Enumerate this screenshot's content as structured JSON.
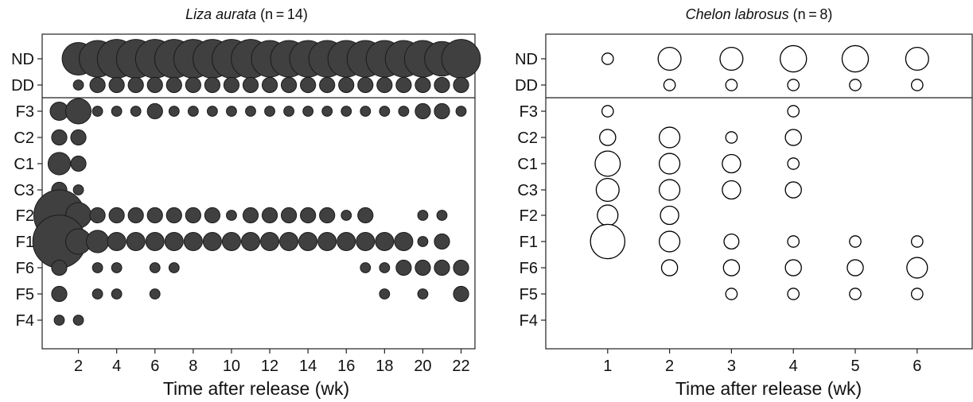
{
  "chart_data": [
    {
      "type": "scatter",
      "title_species": "Liza aurata",
      "title_rest": " (n = 14)",
      "xlabel": "Time after release (wk)",
      "ylabel": "",
      "categories_y": [
        "ND",
        "DD",
        "F3",
        "C2",
        "C1",
        "C3",
        "F2",
        "F1",
        "F6",
        "F5",
        "F4"
      ],
      "x_ticks": [
        "2",
        "4",
        "6",
        "8",
        "10",
        "12",
        "14",
        "16",
        "18",
        "20",
        "22"
      ],
      "xlim": [
        0.3,
        23.0
      ],
      "marker": "filled-circle",
      "marker_color": "#404040",
      "size_scale": "circle size proportional to number of fish",
      "points": [
        {
          "y": "ND",
          "x": 2,
          "s": 3.2
        },
        {
          "y": "ND",
          "x": 3,
          "s": 3.6
        },
        {
          "y": "ND",
          "x": 4,
          "s": 3.8
        },
        {
          "y": "ND",
          "x": 5,
          "s": 3.8
        },
        {
          "y": "ND",
          "x": 6,
          "s": 3.8
        },
        {
          "y": "ND",
          "x": 7,
          "s": 3.8
        },
        {
          "y": "ND",
          "x": 8,
          "s": 3.8
        },
        {
          "y": "ND",
          "x": 9,
          "s": 3.8
        },
        {
          "y": "ND",
          "x": 10,
          "s": 3.8
        },
        {
          "y": "ND",
          "x": 11,
          "s": 3.8
        },
        {
          "y": "ND",
          "x": 12,
          "s": 3.6
        },
        {
          "y": "ND",
          "x": 13,
          "s": 3.6
        },
        {
          "y": "ND",
          "x": 14,
          "s": 3.6
        },
        {
          "y": "ND",
          "x": 15,
          "s": 3.6
        },
        {
          "y": "ND",
          "x": 16,
          "s": 3.6
        },
        {
          "y": "ND",
          "x": 17,
          "s": 3.6
        },
        {
          "y": "ND",
          "x": 18,
          "s": 3.6
        },
        {
          "y": "ND",
          "x": 19,
          "s": 3.6
        },
        {
          "y": "ND",
          "x": 20,
          "s": 3.6
        },
        {
          "y": "ND",
          "x": 21,
          "s": 3.4
        },
        {
          "y": "ND",
          "x": 22,
          "s": 3.8
        },
        {
          "y": "DD",
          "x": 2,
          "s": 1
        },
        {
          "y": "DD",
          "x": 3,
          "s": 1.5
        },
        {
          "y": "DD",
          "x": 4,
          "s": 1.5
        },
        {
          "y": "DD",
          "x": 5,
          "s": 1.5
        },
        {
          "y": "DD",
          "x": 6,
          "s": 1.5
        },
        {
          "y": "DD",
          "x": 7,
          "s": 1.5
        },
        {
          "y": "DD",
          "x": 8,
          "s": 1.5
        },
        {
          "y": "DD",
          "x": 9,
          "s": 1.5
        },
        {
          "y": "DD",
          "x": 10,
          "s": 1.5
        },
        {
          "y": "DD",
          "x": 11,
          "s": 1.5
        },
        {
          "y": "DD",
          "x": 12,
          "s": 1.5
        },
        {
          "y": "DD",
          "x": 13,
          "s": 1.5
        },
        {
          "y": "DD",
          "x": 14,
          "s": 1.5
        },
        {
          "y": "DD",
          "x": 15,
          "s": 1.5
        },
        {
          "y": "DD",
          "x": 16,
          "s": 1.5
        },
        {
          "y": "DD",
          "x": 17,
          "s": 1.5
        },
        {
          "y": "DD",
          "x": 18,
          "s": 1.5
        },
        {
          "y": "DD",
          "x": 19,
          "s": 1.5
        },
        {
          "y": "DD",
          "x": 20,
          "s": 1.5
        },
        {
          "y": "DD",
          "x": 21,
          "s": 1.5
        },
        {
          "y": "DD",
          "x": 22,
          "s": 1.5
        },
        {
          "y": "F3",
          "x": 1,
          "s": 1.8
        },
        {
          "y": "F3",
          "x": 2,
          "s": 2.5
        },
        {
          "y": "F3",
          "x": 3,
          "s": 1
        },
        {
          "y": "F3",
          "x": 4,
          "s": 1
        },
        {
          "y": "F3",
          "x": 5,
          "s": 1
        },
        {
          "y": "F3",
          "x": 6,
          "s": 1.5
        },
        {
          "y": "F3",
          "x": 7,
          "s": 1
        },
        {
          "y": "F3",
          "x": 8,
          "s": 1
        },
        {
          "y": "F3",
          "x": 9,
          "s": 1
        },
        {
          "y": "F3",
          "x": 10,
          "s": 1
        },
        {
          "y": "F3",
          "x": 11,
          "s": 1
        },
        {
          "y": "F3",
          "x": 12,
          "s": 1
        },
        {
          "y": "F3",
          "x": 13,
          "s": 1
        },
        {
          "y": "F3",
          "x": 14,
          "s": 1
        },
        {
          "y": "F3",
          "x": 15,
          "s": 1
        },
        {
          "y": "F3",
          "x": 16,
          "s": 1
        },
        {
          "y": "F3",
          "x": 17,
          "s": 1
        },
        {
          "y": "F3",
          "x": 18,
          "s": 1
        },
        {
          "y": "F3",
          "x": 19,
          "s": 1
        },
        {
          "y": "F3",
          "x": 20,
          "s": 1.5
        },
        {
          "y": "F3",
          "x": 21,
          "s": 1.5
        },
        {
          "y": "F3",
          "x": 22,
          "s": 1
        },
        {
          "y": "C2",
          "x": 1,
          "s": 1.5
        },
        {
          "y": "C2",
          "x": 2,
          "s": 1.5
        },
        {
          "y": "C1",
          "x": 1,
          "s": 2.2
        },
        {
          "y": "C1",
          "x": 2,
          "s": 1.5
        },
        {
          "y": "C3",
          "x": 1,
          "s": 1.5
        },
        {
          "y": "C3",
          "x": 2,
          "s": 1
        },
        {
          "y": "F2",
          "x": 1,
          "s": 5
        },
        {
          "y": "F2",
          "x": 2,
          "s": 2.5
        },
        {
          "y": "F2",
          "x": 3,
          "s": 1.5
        },
        {
          "y": "F2",
          "x": 4,
          "s": 1.5
        },
        {
          "y": "F2",
          "x": 5,
          "s": 1.5
        },
        {
          "y": "F2",
          "x": 6,
          "s": 1.5
        },
        {
          "y": "F2",
          "x": 7,
          "s": 1.5
        },
        {
          "y": "F2",
          "x": 8,
          "s": 1.5
        },
        {
          "y": "F2",
          "x": 9,
          "s": 1.5
        },
        {
          "y": "F2",
          "x": 10,
          "s": 1
        },
        {
          "y": "F2",
          "x": 11,
          "s": 1.5
        },
        {
          "y": "F2",
          "x": 12,
          "s": 1.5
        },
        {
          "y": "F2",
          "x": 13,
          "s": 1.5
        },
        {
          "y": "F2",
          "x": 14,
          "s": 1.5
        },
        {
          "y": "F2",
          "x": 15,
          "s": 1.5
        },
        {
          "y": "F2",
          "x": 16,
          "s": 1
        },
        {
          "y": "F2",
          "x": 17,
          "s": 1.5
        },
        {
          "y": "F2",
          "x": 20,
          "s": 1
        },
        {
          "y": "F2",
          "x": 21,
          "s": 1
        },
        {
          "y": "F1",
          "x": 1,
          "s": 5.2
        },
        {
          "y": "F1",
          "x": 2,
          "s": 2.5
        },
        {
          "y": "F1",
          "x": 3,
          "s": 2.2
        },
        {
          "y": "F1",
          "x": 4,
          "s": 1.8
        },
        {
          "y": "F1",
          "x": 5,
          "s": 1.8
        },
        {
          "y": "F1",
          "x": 6,
          "s": 1.8
        },
        {
          "y": "F1",
          "x": 7,
          "s": 1.8
        },
        {
          "y": "F1",
          "x": 8,
          "s": 1.8
        },
        {
          "y": "F1",
          "x": 9,
          "s": 1.8
        },
        {
          "y": "F1",
          "x": 10,
          "s": 1.8
        },
        {
          "y": "F1",
          "x": 11,
          "s": 1.8
        },
        {
          "y": "F1",
          "x": 12,
          "s": 1.8
        },
        {
          "y": "F1",
          "x": 13,
          "s": 1.8
        },
        {
          "y": "F1",
          "x": 14,
          "s": 1.8
        },
        {
          "y": "F1",
          "x": 15,
          "s": 1.8
        },
        {
          "y": "F1",
          "x": 16,
          "s": 1.8
        },
        {
          "y": "F1",
          "x": 17,
          "s": 1.8
        },
        {
          "y": "F1",
          "x": 18,
          "s": 1.8
        },
        {
          "y": "F1",
          "x": 19,
          "s": 1.8
        },
        {
          "y": "F1",
          "x": 20,
          "s": 1
        },
        {
          "y": "F1",
          "x": 21,
          "s": 1.5
        },
        {
          "y": "F6",
          "x": 1,
          "s": 1.5
        },
        {
          "y": "F6",
          "x": 3,
          "s": 1
        },
        {
          "y": "F6",
          "x": 4,
          "s": 1
        },
        {
          "y": "F6",
          "x": 6,
          "s": 1
        },
        {
          "y": "F6",
          "x": 7,
          "s": 1
        },
        {
          "y": "F6",
          "x": 17,
          "s": 1
        },
        {
          "y": "F6",
          "x": 18,
          "s": 1
        },
        {
          "y": "F6",
          "x": 19,
          "s": 1.5
        },
        {
          "y": "F6",
          "x": 20,
          "s": 1.5
        },
        {
          "y": "F6",
          "x": 21,
          "s": 1.5
        },
        {
          "y": "F6",
          "x": 22,
          "s": 1.5
        },
        {
          "y": "F5",
          "x": 1,
          "s": 1.5
        },
        {
          "y": "F5",
          "x": 3,
          "s": 1
        },
        {
          "y": "F5",
          "x": 4,
          "s": 1
        },
        {
          "y": "F5",
          "x": 6,
          "s": 1
        },
        {
          "y": "F5",
          "x": 18,
          "s": 1
        },
        {
          "y": "F5",
          "x": 20,
          "s": 1
        },
        {
          "y": "F5",
          "x": 22,
          "s": 1.5
        },
        {
          "y": "F4",
          "x": 1,
          "s": 1
        },
        {
          "y": "F4",
          "x": 2,
          "s": 1
        }
      ]
    },
    {
      "type": "scatter",
      "title_species": "Chelon labrosus",
      "title_rest": " (n = 8)",
      "xlabel": "Time after release (wk)",
      "ylabel": "",
      "categories_y": [
        "ND",
        "DD",
        "F3",
        "C2",
        "C1",
        "C3",
        "F2",
        "F1",
        "F6",
        "F5",
        "F4"
      ],
      "x_ticks": [
        "1",
        "2",
        "3",
        "4",
        "5",
        "6"
      ],
      "xlim": [
        0.0,
        7.0
      ],
      "marker": "open-circle",
      "marker_color": "#000000",
      "size_scale": "circle size proportional to number of fish",
      "points": [
        {
          "y": "ND",
          "x": 1,
          "s": 1
        },
        {
          "y": "ND",
          "x": 2,
          "s": 2
        },
        {
          "y": "ND",
          "x": 3,
          "s": 2
        },
        {
          "y": "ND",
          "x": 4,
          "s": 2.3
        },
        {
          "y": "ND",
          "x": 5,
          "s": 2.3
        },
        {
          "y": "ND",
          "x": 6,
          "s": 2
        },
        {
          "y": "DD",
          "x": 2,
          "s": 1
        },
        {
          "y": "DD",
          "x": 3,
          "s": 1
        },
        {
          "y": "DD",
          "x": 4,
          "s": 1
        },
        {
          "y": "DD",
          "x": 5,
          "s": 1
        },
        {
          "y": "DD",
          "x": 6,
          "s": 1
        },
        {
          "y": "F3",
          "x": 1,
          "s": 1
        },
        {
          "y": "F3",
          "x": 4,
          "s": 1
        },
        {
          "y": "C2",
          "x": 1,
          "s": 1.4
        },
        {
          "y": "C2",
          "x": 2,
          "s": 1.8
        },
        {
          "y": "C2",
          "x": 3,
          "s": 1
        },
        {
          "y": "C2",
          "x": 4,
          "s": 1.4
        },
        {
          "y": "C1",
          "x": 1,
          "s": 2.2
        },
        {
          "y": "C1",
          "x": 2,
          "s": 1.8
        },
        {
          "y": "C1",
          "x": 3,
          "s": 1.6
        },
        {
          "y": "C1",
          "x": 4,
          "s": 1
        },
        {
          "y": "C3",
          "x": 1,
          "s": 2
        },
        {
          "y": "C3",
          "x": 2,
          "s": 1.8
        },
        {
          "y": "C3",
          "x": 3,
          "s": 1.6
        },
        {
          "y": "C3",
          "x": 4,
          "s": 1.4
        },
        {
          "y": "F2",
          "x": 1,
          "s": 1.8
        },
        {
          "y": "F2",
          "x": 2,
          "s": 1.6
        },
        {
          "y": "F1",
          "x": 1,
          "s": 3
        },
        {
          "y": "F1",
          "x": 2,
          "s": 1.8
        },
        {
          "y": "F1",
          "x": 3,
          "s": 1.3
        },
        {
          "y": "F1",
          "x": 4,
          "s": 1
        },
        {
          "y": "F1",
          "x": 5,
          "s": 1
        },
        {
          "y": "F1",
          "x": 6,
          "s": 1
        },
        {
          "y": "F6",
          "x": 2,
          "s": 1.4
        },
        {
          "y": "F6",
          "x": 3,
          "s": 1.4
        },
        {
          "y": "F6",
          "x": 4,
          "s": 1.4
        },
        {
          "y": "F6",
          "x": 5,
          "s": 1.4
        },
        {
          "y": "F6",
          "x": 6,
          "s": 1.8
        },
        {
          "y": "F5",
          "x": 3,
          "s": 1
        },
        {
          "y": "F5",
          "x": 4,
          "s": 1
        },
        {
          "y": "F5",
          "x": 5,
          "s": 1
        },
        {
          "y": "F5",
          "x": 6,
          "s": 1
        }
      ]
    }
  ]
}
